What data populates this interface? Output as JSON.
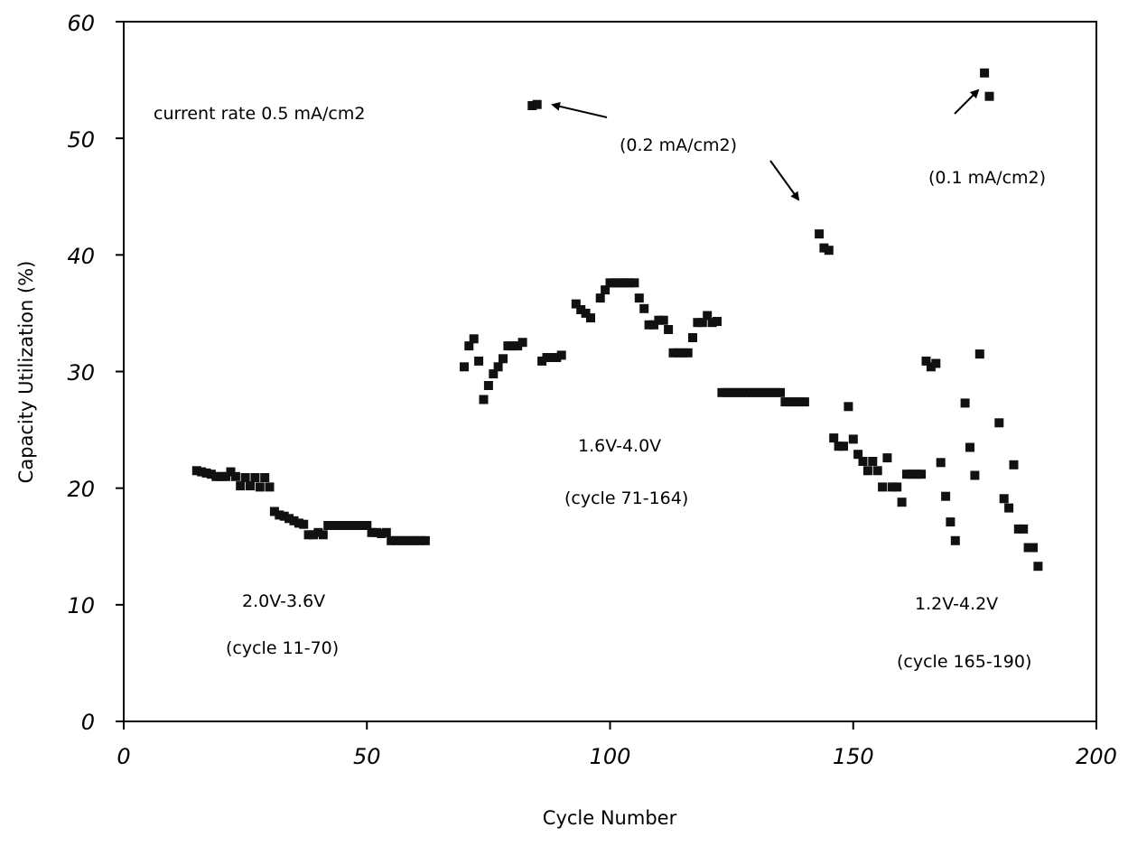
{
  "chart_data": {
    "type": "scatter",
    "title": "",
    "xlabel": "Cycle Number",
    "ylabel": "Capacity Utilization (%)",
    "xlim": [
      0,
      200
    ],
    "ylim": [
      0,
      60
    ],
    "x_ticks": [
      "0",
      "50",
      "100",
      "150",
      "200"
    ],
    "y_ticks": [
      "0",
      "10",
      "20",
      "30",
      "40",
      "50",
      "60"
    ],
    "grid": false,
    "legend": "none",
    "marker": "square",
    "marker_color": "#111111",
    "series": [
      {
        "points": [
          [
            15,
            21.5
          ],
          [
            16,
            21.4
          ],
          [
            17,
            21.3
          ],
          [
            18,
            21.2
          ],
          [
            19,
            21.0
          ],
          [
            20,
            21.0
          ],
          [
            21,
            21.0
          ],
          [
            22,
            21.4
          ],
          [
            23,
            21.0
          ],
          [
            24,
            20.2
          ],
          [
            25,
            20.9
          ],
          [
            26,
            20.2
          ],
          [
            27,
            20.9
          ],
          [
            28,
            20.1
          ],
          [
            29,
            20.9
          ],
          [
            30,
            20.1
          ],
          [
            31,
            18.0
          ],
          [
            32,
            17.7
          ],
          [
            33,
            17.6
          ],
          [
            34,
            17.4
          ],
          [
            35,
            17.2
          ],
          [
            36,
            17.0
          ],
          [
            37,
            16.9
          ],
          [
            38,
            16.0
          ],
          [
            39,
            16.0
          ],
          [
            40,
            16.2
          ],
          [
            41,
            16.0
          ],
          [
            42,
            16.8
          ],
          [
            43,
            16.8
          ],
          [
            44,
            16.8
          ],
          [
            45,
            16.8
          ],
          [
            46,
            16.8
          ],
          [
            47,
            16.8
          ],
          [
            48,
            16.8
          ],
          [
            49,
            16.8
          ],
          [
            50,
            16.8
          ],
          [
            51,
            16.2
          ],
          [
            52,
            16.2
          ],
          [
            53,
            16.1
          ],
          [
            54,
            16.2
          ],
          [
            55,
            15.5
          ],
          [
            56,
            15.5
          ],
          [
            57,
            15.5
          ],
          [
            58,
            15.5
          ],
          [
            59,
            15.5
          ],
          [
            60,
            15.5
          ],
          [
            61,
            15.5
          ],
          [
            62,
            15.5
          ],
          [
            70,
            30.4
          ],
          [
            71,
            32.2
          ],
          [
            72,
            32.8
          ],
          [
            73,
            30.9
          ],
          [
            74,
            27.6
          ],
          [
            75,
            28.8
          ],
          [
            76,
            29.8
          ],
          [
            77,
            30.4
          ],
          [
            78,
            31.1
          ],
          [
            79,
            32.2
          ],
          [
            80,
            32.2
          ],
          [
            81,
            32.2
          ],
          [
            82,
            32.5
          ],
          [
            84,
            52.8
          ],
          [
            85,
            52.9
          ],
          [
            86,
            30.9
          ],
          [
            87,
            31.2
          ],
          [
            88,
            31.2
          ],
          [
            89,
            31.2
          ],
          [
            90,
            31.4
          ],
          [
            93,
            35.8
          ],
          [
            94,
            35.3
          ],
          [
            95,
            35.0
          ],
          [
            96,
            34.6
          ],
          [
            98,
            36.3
          ],
          [
            99,
            37.0
          ],
          [
            100,
            37.6
          ],
          [
            101,
            37.6
          ],
          [
            102,
            37.6
          ],
          [
            103,
            37.6
          ],
          [
            104,
            37.6
          ],
          [
            105,
            37.6
          ],
          [
            106,
            36.3
          ],
          [
            107,
            35.4
          ],
          [
            108,
            34.0
          ],
          [
            109,
            34.0
          ],
          [
            110,
            34.4
          ],
          [
            111,
            34.4
          ],
          [
            112,
            33.6
          ],
          [
            113,
            31.6
          ],
          [
            114,
            31.6
          ],
          [
            115,
            31.6
          ],
          [
            116,
            31.6
          ],
          [
            117,
            32.9
          ],
          [
            118,
            34.2
          ],
          [
            119,
            34.2
          ],
          [
            120,
            34.8
          ],
          [
            121,
            34.2
          ],
          [
            122,
            34.3
          ],
          [
            123,
            28.2
          ],
          [
            124,
            28.2
          ],
          [
            125,
            28.2
          ],
          [
            126,
            28.2
          ],
          [
            127,
            28.2
          ],
          [
            128,
            28.2
          ],
          [
            129,
            28.2
          ],
          [
            130,
            28.2
          ],
          [
            131,
            28.2
          ],
          [
            132,
            28.2
          ],
          [
            133,
            28.2
          ],
          [
            134,
            28.2
          ],
          [
            135,
            28.2
          ],
          [
            136,
            27.4
          ],
          [
            137,
            27.4
          ],
          [
            138,
            27.4
          ],
          [
            139,
            27.4
          ],
          [
            140,
            27.4
          ],
          [
            143,
            41.8
          ],
          [
            144,
            40.6
          ],
          [
            145,
            40.4
          ],
          [
            146,
            24.3
          ],
          [
            147,
            23.6
          ],
          [
            148,
            23.6
          ],
          [
            149,
            27.0
          ],
          [
            150,
            24.2
          ],
          [
            151,
            22.9
          ],
          [
            152,
            22.3
          ],
          [
            153,
            21.5
          ],
          [
            154,
            22.3
          ],
          [
            155,
            21.5
          ],
          [
            156,
            20.1
          ],
          [
            157,
            22.6
          ],
          [
            158,
            20.1
          ],
          [
            159,
            20.1
          ],
          [
            160,
            18.8
          ],
          [
            161,
            21.2
          ],
          [
            162,
            21.2
          ],
          [
            163,
            21.2
          ],
          [
            164,
            21.2
          ],
          [
            165,
            30.9
          ],
          [
            166,
            30.4
          ],
          [
            167,
            30.7
          ],
          [
            168,
            22.2
          ],
          [
            169,
            19.3
          ],
          [
            170,
            17.1
          ],
          [
            171,
            15.5
          ],
          [
            173,
            27.3
          ],
          [
            174,
            23.5
          ],
          [
            175,
            21.1
          ],
          [
            176,
            31.5
          ],
          [
            177,
            55.6
          ],
          [
            178,
            53.6
          ],
          [
            180,
            25.6
          ],
          [
            181,
            19.1
          ],
          [
            182,
            18.3
          ],
          [
            183,
            22.0
          ],
          [
            184,
            16.5
          ],
          [
            185,
            16.5
          ],
          [
            186,
            14.9
          ],
          [
            187,
            14.9
          ],
          [
            188,
            13.3
          ]
        ]
      }
    ],
    "annotations": [
      {
        "text": "current rate 0.5 mA/cm2"
      },
      {
        "text": "(0.2 mA/cm2)"
      },
      {
        "text": "(0.1 mA/cm2)"
      },
      {
        "text": "1.6V-4.0V"
      },
      {
        "text": "(cycle 71-164)"
      },
      {
        "text": "2.0V-3.6V"
      },
      {
        "text": "(cycle 11-70)"
      },
      {
        "text": "1.2V-4.2V"
      },
      {
        "text": "(cycle 165-190)"
      }
    ]
  }
}
